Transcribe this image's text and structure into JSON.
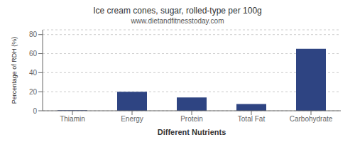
{
  "chart_data": {
    "type": "bar",
    "title": "Ice cream cones, sugar, rolled-type per 100g",
    "subtitle": "www.dietandfitnesstoday.com",
    "xlabel": "Different Nutrients",
    "ylabel": "Percentage of RDH (%)",
    "categories": [
      "Thiamin",
      "Energy",
      "Protein",
      "Total Fat",
      "Carbohydrate"
    ],
    "values": [
      0.5,
      20,
      14,
      7,
      65
    ],
    "color": "#2e4482",
    "ylim": [
      0,
      85
    ],
    "yticks": [
      0,
      20,
      40,
      60,
      80
    ],
    "grid": true
  }
}
